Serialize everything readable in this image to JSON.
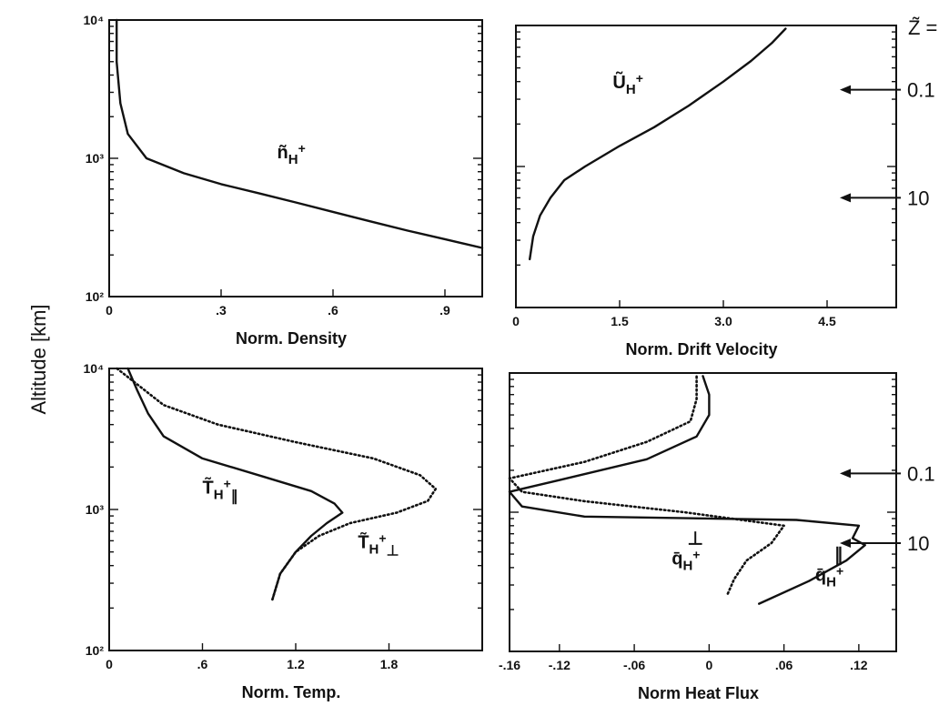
{
  "figure": {
    "y_axis_title": "Altitude [km]",
    "z_header": "Z̃ ="
  },
  "chart_data": [
    {
      "id": "density",
      "type": "line",
      "xlabel": "Norm. Density",
      "ylabel": "Altitude [km]",
      "xlim": [
        0,
        1.0
      ],
      "ylim": [
        100,
        10000
      ],
      "yscale": "log",
      "x_ticks": [
        0,
        0.3,
        0.6,
        0.9
      ],
      "x_tick_labels": [
        "0",
        ".3",
        ".6",
        ".9"
      ],
      "y_ticks": [
        100,
        1000,
        10000
      ],
      "y_tick_labels": [
        "10²",
        "10³",
        "10⁴"
      ],
      "series": [
        {
          "name": "ñH+",
          "style": "solid",
          "x": [
            0.02,
            0.02,
            0.03,
            0.05,
            0.1,
            0.2,
            0.3,
            0.4,
            0.5,
            0.6,
            0.7,
            0.8,
            0.9,
            1.0
          ],
          "y": [
            10000,
            5000,
            2500,
            1500,
            1000,
            780,
            650,
            560,
            480,
            410,
            350,
            300,
            260,
            225
          ]
        }
      ]
    },
    {
      "id": "drift",
      "type": "line",
      "xlabel": "Norm. Drift Velocity",
      "xlim": [
        0,
        5.5
      ],
      "ylim": [
        100,
        10000
      ],
      "yscale": "log",
      "x_ticks": [
        0,
        1.5,
        3.0,
        4.5
      ],
      "x_tick_labels": [
        "0",
        "1.5",
        "3.0",
        "4.5"
      ],
      "series": [
        {
          "name": "ŨH+",
          "style": "solid",
          "x": [
            0.2,
            0.25,
            0.35,
            0.5,
            0.7,
            1.0,
            1.5,
            2.0,
            2.5,
            3.0,
            3.4,
            3.7,
            3.9
          ],
          "y": [
            220,
            320,
            450,
            600,
            800,
            1000,
            1400,
            1900,
            2700,
            4000,
            5600,
            7500,
            9500
          ]
        }
      ]
    },
    {
      "id": "temperature",
      "type": "line",
      "xlabel": "Norm. Temp.",
      "ylabel": "Altitude [km]",
      "xlim": [
        0,
        2.4
      ],
      "ylim": [
        100,
        10000
      ],
      "yscale": "log",
      "x_ticks": [
        0,
        0.6,
        1.2,
        1.8
      ],
      "x_tick_labels": [
        "0",
        ".6",
        "1.2",
        "1.8"
      ],
      "y_ticks": [
        100,
        1000,
        10000
      ],
      "y_tick_labels": [
        "10²",
        "10³",
        "10⁴"
      ],
      "series": [
        {
          "name": "T̃H+∥",
          "style": "solid",
          "x": [
            1.05,
            1.1,
            1.2,
            1.3,
            1.4,
            1.5,
            1.45,
            1.3,
            1.0,
            0.6,
            0.35,
            0.25,
            0.18,
            0.12
          ],
          "y": [
            230,
            350,
            500,
            650,
            800,
            950,
            1100,
            1350,
            1700,
            2300,
            3300,
            4800,
            7000,
            10000
          ]
        },
        {
          "name": "T̃H+⊥",
          "style": "dotted",
          "x": [
            1.05,
            1.1,
            1.2,
            1.35,
            1.55,
            1.85,
            2.05,
            2.1,
            2.0,
            1.7,
            1.2,
            0.7,
            0.35,
            0.05
          ],
          "y": [
            230,
            350,
            500,
            650,
            800,
            950,
            1150,
            1400,
            1750,
            2300,
            3000,
            4000,
            5500,
            10000
          ]
        }
      ]
    },
    {
      "id": "heatflux",
      "type": "line",
      "xlabel": "Norm Heat Flux",
      "xlim": [
        -0.16,
        0.15
      ],
      "ylim": [
        100,
        10000
      ],
      "yscale": "log",
      "x_ticks": [
        -0.16,
        -0.12,
        -0.06,
        0,
        0.06,
        0.12
      ],
      "x_tick_labels": [
        "-.16",
        "-.12",
        "-.06",
        "0",
        ".06",
        ".12"
      ],
      "series": [
        {
          "name": "q̄H+∥",
          "style": "solid",
          "x": [
            0.04,
            0.08,
            0.11,
            0.125,
            0.115,
            0.12,
            0.07,
            -0.1,
            -0.15,
            -0.16,
            -0.12,
            -0.05,
            -0.01,
            0.0,
            0.0,
            -0.005
          ],
          "y": [
            220,
            320,
            450,
            580,
            650,
            800,
            880,
            930,
            1100,
            1400,
            1700,
            2400,
            3500,
            5000,
            7000,
            9500
          ]
        },
        {
          "name": "q̄H+⊥",
          "style": "dotted",
          "x": [
            0.015,
            0.02,
            0.03,
            0.05,
            0.06,
            -0.02,
            -0.1,
            -0.15,
            -0.16,
            -0.1,
            -0.05,
            -0.015,
            -0.01,
            -0.01
          ],
          "y": [
            260,
            330,
            450,
            600,
            800,
            1000,
            1200,
            1400,
            1750,
            2300,
            3200,
            4500,
            6500,
            9500
          ]
        }
      ]
    }
  ],
  "z_markers": [
    {
      "panel": "drift",
      "label": "0.1",
      "y": 3500
    },
    {
      "panel": "drift",
      "label": "10",
      "y": 600
    },
    {
      "panel": "heatflux",
      "label": "0.1",
      "y": 1900
    },
    {
      "panel": "heatflux",
      "label": "10",
      "y": 600
    }
  ],
  "curve_labels": [
    {
      "panel": "density",
      "main": "ñ",
      "sub": "H",
      "sup": "+",
      "tail": "",
      "x": 0.45,
      "y": 1000
    },
    {
      "panel": "drift",
      "main": "Ũ",
      "sub": "H",
      "sup": "+",
      "tail": "",
      "x": 1.4,
      "y": 3600
    },
    {
      "panel": "temperature",
      "main": "T̃",
      "sub": "H",
      "sup": "+",
      "tail": "∥",
      "x": 0.6,
      "y": 1300
    },
    {
      "panel": "temperature",
      "main": "T̃",
      "sub": "H",
      "sup": "+",
      "tail": "⊥",
      "x": 1.6,
      "y": 530
    },
    {
      "panel": "heatflux",
      "main": "q̄",
      "sub": "H",
      "sup": "+",
      "tail": "",
      "over": "⊥",
      "x": -0.03,
      "y": 420
    },
    {
      "panel": "heatflux",
      "main": "q̄",
      "sub": "H",
      "sup": "+",
      "tail": "",
      "over": "∥",
      "x": 0.085,
      "y": 320
    }
  ]
}
